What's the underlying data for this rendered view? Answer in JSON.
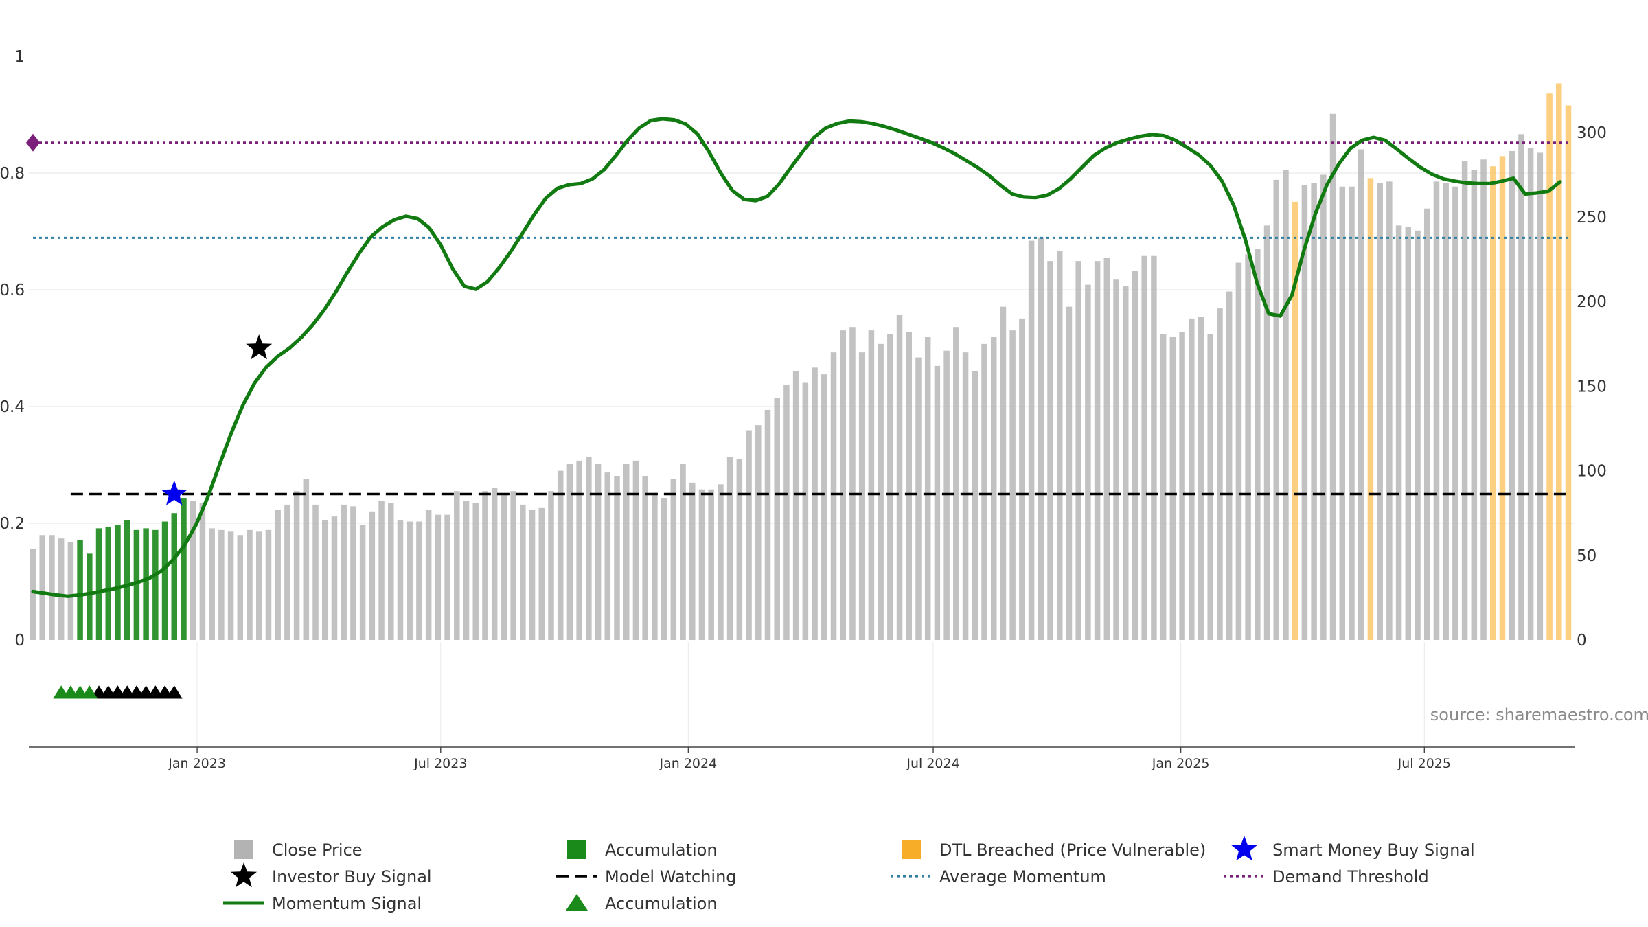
{
  "chart_data": {
    "type": "bar",
    "source": "source: sharemaestro.com",
    "x_ticks": [
      "Jan 2023",
      "Jul 2023",
      "Jan 2024",
      "Jul 2024",
      "Jan 2025",
      "Jul 2025"
    ],
    "left_axis": {
      "ylim": [
        0,
        1
      ],
      "ticks": [
        "0",
        "0.2",
        "0.4",
        "0.6",
        "0.8",
        "1"
      ]
    },
    "right_axis": {
      "ylim": [
        0,
        345
      ],
      "ticks": [
        "0",
        "50",
        "100",
        "150",
        "200",
        "250",
        "300"
      ]
    },
    "start_date": "2022-09-01",
    "week_step": 1,
    "close_price": [
      54,
      62,
      62,
      60,
      58,
      59,
      51,
      66,
      67,
      68,
      71,
      65,
      66,
      65,
      70,
      75,
      84,
      82,
      81,
      66,
      65,
      64,
      62,
      65,
      64,
      65,
      77,
      80,
      88,
      95,
      80,
      71,
      73,
      80,
      79,
      68,
      76,
      82,
      81,
      71,
      70,
      70,
      77,
      74,
      74,
      88,
      82,
      81,
      88,
      90,
      86,
      88,
      80,
      77,
      78,
      88,
      100,
      104,
      106,
      108,
      104,
      99,
      97,
      104,
      106,
      97,
      87,
      84,
      95,
      104,
      93,
      89,
      89,
      92,
      108,
      107,
      124,
      127,
      136,
      143,
      151,
      159,
      152,
      161,
      157,
      170,
      183,
      185,
      170,
      183,
      175,
      181,
      192,
      182,
      167,
      179,
      162,
      171,
      185,
      170,
      159,
      175,
      179,
      197,
      183,
      190,
      236,
      238,
      224,
      230,
      197,
      224,
      210,
      224,
      226,
      213,
      209,
      218,
      227,
      227,
      181,
      179,
      182,
      190,
      191,
      181,
      196,
      206,
      223,
      228,
      231,
      245,
      272,
      278,
      259,
      269,
      270,
      275,
      311,
      268,
      268,
      290,
      273,
      270,
      271,
      245,
      244,
      242,
      255,
      271,
      270,
      268,
      283,
      278,
      284,
      280,
      286,
      289,
      299,
      291,
      288,
      323,
      329,
      316
    ],
    "bar_category": [
      "c",
      "c",
      "c",
      "c",
      "c",
      "a",
      "a",
      "a",
      "a",
      "a",
      "a",
      "a",
      "a",
      "a",
      "a",
      "a",
      "a",
      "c",
      "c",
      "c",
      "c",
      "c",
      "c",
      "c",
      "c",
      "c",
      "c",
      "c",
      "c",
      "c",
      "c",
      "c",
      "c",
      "c",
      "c",
      "c",
      "c",
      "c",
      "c",
      "c",
      "c",
      "c",
      "c",
      "c",
      "c",
      "c",
      "c",
      "c",
      "c",
      "c",
      "c",
      "c",
      "c",
      "c",
      "c",
      "c",
      "c",
      "c",
      "c",
      "c",
      "c",
      "c",
      "c",
      "c",
      "c",
      "c",
      "c",
      "c",
      "c",
      "c",
      "c",
      "c",
      "c",
      "c",
      "c",
      "c",
      "c",
      "c",
      "c",
      "c",
      "c",
      "c",
      "c",
      "c",
      "c",
      "c",
      "c",
      "c",
      "c",
      "c",
      "c",
      "c",
      "c",
      "c",
      "c",
      "c",
      "c",
      "c",
      "c",
      "c",
      "c",
      "c",
      "c",
      "c",
      "c",
      "c",
      "c",
      "c",
      "c",
      "c",
      "c",
      "c",
      "c",
      "c",
      "c",
      "c",
      "c",
      "c",
      "c",
      "c",
      "c",
      "c",
      "c",
      "c",
      "c",
      "c",
      "c",
      "c",
      "c",
      "c",
      "c",
      "c",
      "c",
      "c",
      "d",
      "c",
      "c",
      "c",
      "c",
      "c",
      "c",
      "c",
      "d",
      "c",
      "c",
      "c",
      "c",
      "c",
      "c",
      "c",
      "c",
      "c",
      "c",
      "c",
      "c",
      "d",
      "d",
      "c",
      "c",
      "c",
      "c",
      "d",
      "d",
      "d"
    ],
    "momentum_signal": [
      0.083,
      0.08,
      0.077,
      0.075,
      0.077,
      0.08,
      0.084,
      0.088,
      0.093,
      0.099,
      0.106,
      0.118,
      0.137,
      0.162,
      0.198,
      0.245,
      0.3,
      0.354,
      0.402,
      0.44,
      0.467,
      0.486,
      0.5,
      0.518,
      0.54,
      0.566,
      0.597,
      0.631,
      0.663,
      0.691,
      0.708,
      0.72,
      0.726,
      0.722,
      0.706,
      0.676,
      0.636,
      0.606,
      0.601,
      0.614,
      0.638,
      0.666,
      0.697,
      0.729,
      0.757,
      0.774,
      0.78,
      0.782,
      0.79,
      0.806,
      0.83,
      0.856,
      0.877,
      0.89,
      0.893,
      0.891,
      0.884,
      0.867,
      0.836,
      0.8,
      0.77,
      0.755,
      0.753,
      0.76,
      0.781,
      0.809,
      0.836,
      0.861,
      0.877,
      0.885,
      0.889,
      0.888,
      0.885,
      0.88,
      0.874,
      0.867,
      0.86,
      0.853,
      0.844,
      0.834,
      0.822,
      0.81,
      0.796,
      0.779,
      0.764,
      0.759,
      0.758,
      0.762,
      0.773,
      0.79,
      0.81,
      0.83,
      0.843,
      0.852,
      0.858,
      0.863,
      0.866,
      0.864,
      0.856,
      0.844,
      0.831,
      0.813,
      0.786,
      0.745,
      0.686,
      0.612,
      0.559,
      0.555,
      0.591,
      0.666,
      0.73,
      0.78,
      0.815,
      0.842,
      0.856,
      0.861,
      0.856,
      0.841,
      0.825,
      0.81,
      0.798,
      0.79,
      0.786,
      0.783,
      0.782,
      0.782,
      0.786,
      0.791,
      0.764,
      0.766,
      0.769,
      0.785
    ],
    "average_momentum": 0.689,
    "demand_threshold": 0.852,
    "model_watching": 0.25,
    "model_watching_start_index": 4,
    "investor_buy_signal": {
      "index": 24,
      "value": 0.5
    },
    "smart_money_buy_signal": {
      "index": 15,
      "value": 0.25
    },
    "accumulation_markers": {
      "value": -0.09,
      "green_indices": [
        3,
        4,
        5,
        6
      ],
      "black_indices": [
        7,
        8,
        9,
        10,
        11,
        12,
        13,
        14,
        15
      ]
    },
    "legend": {
      "placement": "bottom",
      "items": [
        {
          "label": "Close Price",
          "marker": "square",
          "color": "#b3b3b3"
        },
        {
          "label": "Accumulation",
          "marker": "square",
          "color": "#1a8a1a"
        },
        {
          "label": "DTL Breached (Price Vulnerable)",
          "marker": "square",
          "color": "#f7a91c"
        },
        {
          "label": "Smart Money Buy Signal",
          "marker": "star",
          "color": "#0000ee"
        },
        {
          "label": "Investor Buy Signal",
          "marker": "star",
          "color": "#000000"
        },
        {
          "label": "Model Watching",
          "marker": "dash",
          "color": "#000000"
        },
        {
          "label": "Average Momentum",
          "marker": "dot",
          "color": "#2f7fa3"
        },
        {
          "label": "Demand Threshold",
          "marker": "dot",
          "color": "#7a1f7a"
        },
        {
          "label": "Momentum Signal",
          "marker": "line",
          "color": "#117a11"
        },
        {
          "label": "Accumulation",
          "marker": "triangle",
          "color": "#1a8a1a"
        }
      ]
    },
    "colors": {
      "close": "#b3b3b3",
      "accumulation": "#1a8a1a",
      "dtl": "#fbbf57",
      "momentum": "#117a11",
      "avg_momentum": "#2f7fa3",
      "demand": "#7a1f7a",
      "watching": "#000000",
      "smart_money": "#0000ee",
      "investor": "#000000"
    }
  }
}
